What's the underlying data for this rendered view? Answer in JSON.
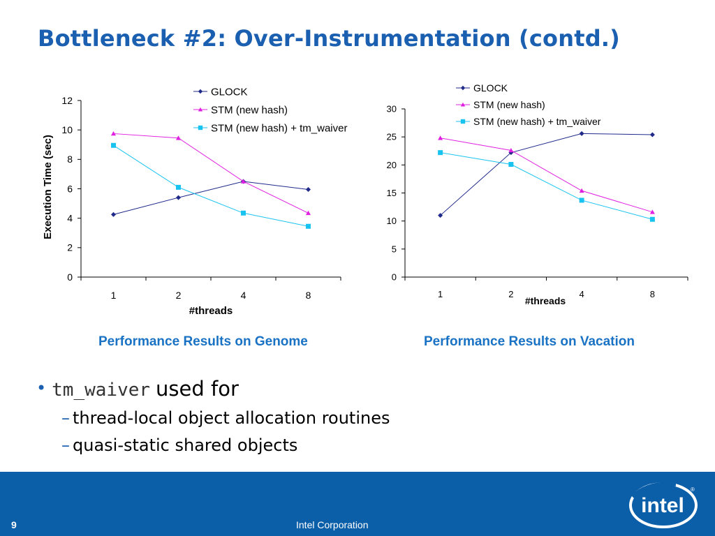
{
  "slide": {
    "title": "Bottleneck #2: Over-Instrumentation (contd.)",
    "captions": [
      "Performance Results on Genome",
      "Performance Results on Vacation"
    ],
    "bullets": {
      "main_code": "tm_waiver",
      "main_text": "used for",
      "sub": [
        "thread-local object allocation routines",
        "quasi-static shared objects"
      ]
    },
    "footer": {
      "page": "9",
      "company": "Intel Corporation",
      "logo_text": "intel"
    }
  },
  "colors": {
    "title": "#1a5fb0",
    "caption": "#1a72c4",
    "footer": "#0b5ea8",
    "glock": "#1f2a8a",
    "stm": "#e020e0",
    "waiver": "#19c3f0"
  },
  "chart_data": [
    {
      "type": "line",
      "title": "",
      "xlabel": "#threads",
      "ylabel": "Execution Time (sec)",
      "categories": [
        "1",
        "2",
        "4",
        "8"
      ],
      "ylim": [
        0,
        12
      ],
      "yticks": [
        "0",
        "2",
        "4",
        "6",
        "8",
        "10",
        "12"
      ],
      "grid": false,
      "legend_position": "top-right",
      "series": [
        {
          "name": "GLOCK",
          "marker": "diamond",
          "color": "#1f2a8a",
          "values": [
            4.25,
            5.4,
            6.5,
            5.95
          ]
        },
        {
          "name": "STM (new hash)",
          "marker": "triangle",
          "color": "#e020e0",
          "values": [
            9.75,
            9.45,
            6.5,
            4.35
          ]
        },
        {
          "name": "STM (new hash) + tm_waiver",
          "marker": "square",
          "color": "#19c3f0",
          "values": [
            8.95,
            6.1,
            4.35,
            3.45
          ]
        }
      ]
    },
    {
      "type": "line",
      "title": "",
      "xlabel": "#threads",
      "ylabel": "",
      "categories": [
        "1",
        "2",
        "4",
        "8"
      ],
      "ylim": [
        0,
        30
      ],
      "yticks": [
        "0",
        "5",
        "10",
        "15",
        "20",
        "25",
        "30"
      ],
      "grid": false,
      "legend_position": "top-right",
      "series": [
        {
          "name": "GLOCK",
          "marker": "diamond",
          "color": "#1f2a8a",
          "values": [
            11.0,
            22.2,
            25.6,
            25.4
          ]
        },
        {
          "name": "STM (new hash)",
          "marker": "triangle",
          "color": "#e020e0",
          "values": [
            24.8,
            22.6,
            15.4,
            11.6
          ]
        },
        {
          "name": "STM (new hash) + tm_waiver",
          "marker": "square",
          "color": "#19c3f0",
          "values": [
            22.2,
            20.1,
            13.7,
            10.3
          ]
        }
      ]
    }
  ]
}
